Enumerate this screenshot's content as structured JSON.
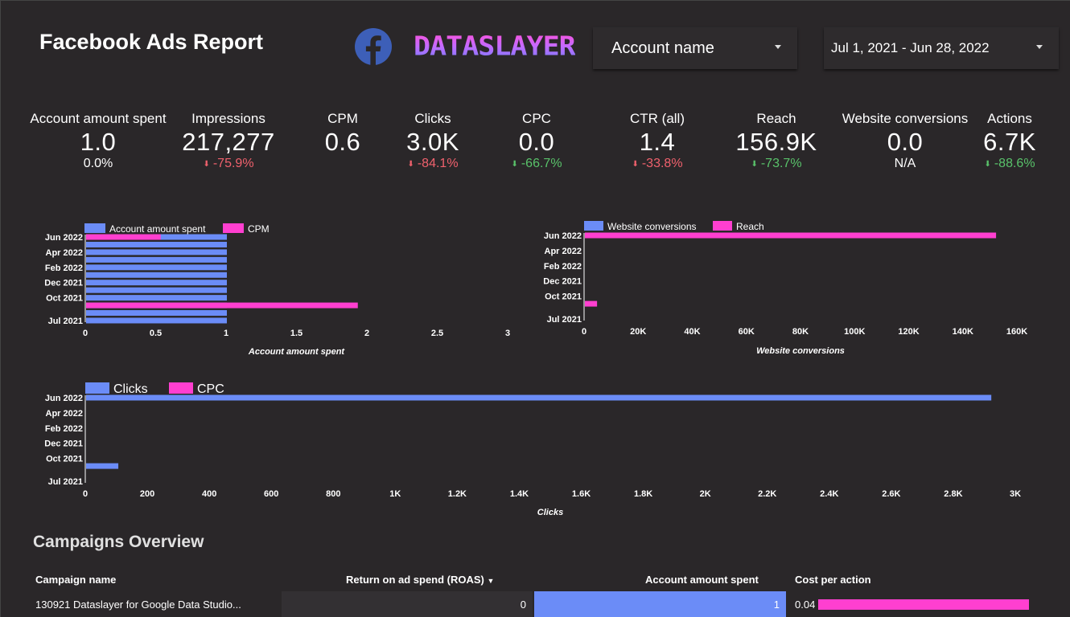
{
  "header": {
    "title": "Facebook Ads Report",
    "brand": "DATASLAYER",
    "account_dropdown": "Account name",
    "date_dropdown": "Jul 1, 2021 - Jun 28, 2022"
  },
  "colors": {
    "series_a": "#6b8cf7",
    "series_b": "#ff3fd0",
    "negative": "#f0616d",
    "positive": "#59c26a",
    "background": "#2a2729"
  },
  "kpis": [
    {
      "label": "Account amount spent",
      "value": "1.0",
      "delta": "0.0%",
      "trend": "neutral"
    },
    {
      "label": "Impressions",
      "value": "217,277",
      "delta": "-75.9%",
      "trend": "negative"
    },
    {
      "label": "CPM",
      "value": "0.6",
      "delta": "",
      "trend": "none"
    },
    {
      "label": "Clicks",
      "value": "3.0K",
      "delta": "-84.1%",
      "trend": "negative"
    },
    {
      "label": "CPC",
      "value": "0.0",
      "delta": "-66.7%",
      "trend": "positive"
    },
    {
      "label": "CTR (all)",
      "value": "1.4",
      "delta": "-33.8%",
      "trend": "negative"
    },
    {
      "label": "Reach",
      "value": "156.9K",
      "delta": "-73.7%",
      "trend": "positive"
    },
    {
      "label": "Website conversions",
      "value": "0.0",
      "delta": "N/A",
      "trend": "neutral"
    },
    {
      "label": "Actions",
      "value": "6.7K",
      "delta": "-88.6%",
      "trend": "positive"
    }
  ],
  "chart_data": [
    {
      "type": "bar",
      "orientation": "horizontal",
      "categories": [
        "Jun 2022",
        "",
        "Apr 2022",
        "",
        "Feb 2022",
        "",
        "Dec 2021",
        "",
        "Oct 2021",
        "",
        "",
        "Jul 2021"
      ],
      "series": [
        {
          "name": "Account amount spent",
          "values": [
            1,
            1,
            1,
            1,
            1,
            1,
            1,
            1,
            1,
            1,
            1,
            1
          ]
        },
        {
          "name": "CPM",
          "values": [
            0.53,
            0,
            0,
            0,
            0,
            0,
            0,
            0,
            0,
            1.93,
            0,
            0
          ]
        }
      ],
      "xlabel": "Account amount spent",
      "xlim": [
        0,
        3
      ],
      "xticks": [
        "0",
        "0.5",
        "1",
        "1.5",
        "2",
        "2.5",
        "3"
      ]
    },
    {
      "type": "bar",
      "orientation": "horizontal",
      "categories": [
        "Jun 2022",
        "",
        "Apr 2022",
        "",
        "Feb 2022",
        "",
        "Dec 2021",
        "",
        "Oct 2021",
        "",
        "",
        "Jul 2021"
      ],
      "series": [
        {
          "name": "Website conversions",
          "values": [
            0,
            0,
            0,
            0,
            0,
            0,
            0,
            0,
            0,
            0,
            0,
            0
          ]
        },
        {
          "name": "Reach",
          "values": [
            152000,
            0,
            0,
            0,
            0,
            0,
            0,
            0,
            0,
            4500,
            0,
            0
          ]
        }
      ],
      "xlabel": "Website conversions",
      "xlim": [
        0,
        160000
      ],
      "xticks": [
        "0",
        "20K",
        "40K",
        "60K",
        "80K",
        "100K",
        "120K",
        "140K",
        "160K"
      ]
    },
    {
      "type": "bar",
      "orientation": "horizontal",
      "categories": [
        "Jun 2022",
        "",
        "Apr 2022",
        "",
        "Feb 2022",
        "",
        "Dec 2021",
        "",
        "Oct 2021",
        "",
        "",
        "Jul 2021"
      ],
      "series": [
        {
          "name": "Clicks",
          "values": [
            2920,
            0,
            0,
            0,
            0,
            0,
            0,
            0,
            0,
            104,
            0,
            0
          ]
        },
        {
          "name": "CPC",
          "values": [
            0,
            0,
            0,
            0,
            0,
            0,
            0,
            0,
            0,
            0,
            0,
            0
          ]
        }
      ],
      "xlabel": "Clicks",
      "xlim": [
        0,
        3000
      ],
      "xticks": [
        "0",
        "200",
        "400",
        "600",
        "800",
        "1K",
        "1.2K",
        "1.4K",
        "1.6K",
        "1.8K",
        "2K",
        "2.2K",
        "2.4K",
        "2.6K",
        "2.8K",
        "3K"
      ]
    }
  ],
  "table": {
    "section_title": "Campaigns Overview",
    "headers": {
      "campaign": "Campaign name",
      "roas": "Return on ad spend (ROAS)",
      "spent": "Account amount spent",
      "cpa": "Cost per action"
    },
    "rows": [
      {
        "campaign": "130921 Dataslayer for Google Data Studio...",
        "roas": "0",
        "spent": "1",
        "cpa": "0.04"
      }
    ]
  }
}
